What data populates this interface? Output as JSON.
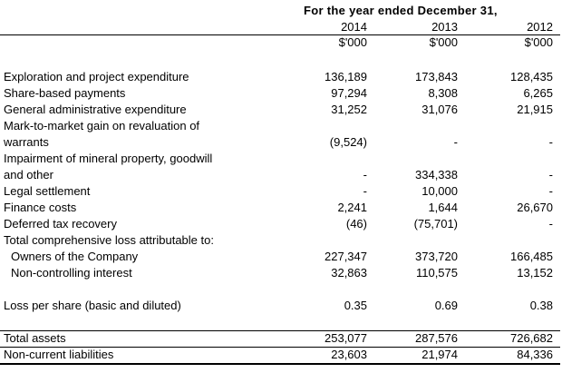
{
  "header": {
    "title": "For the year ended December 31,",
    "years": [
      "2014",
      "2013",
      "2012"
    ],
    "units": [
      "$'000",
      "$'000",
      "$'000"
    ]
  },
  "rows": [
    {
      "label": "Exploration and project expenditure",
      "values": [
        "136,189",
        "173,843",
        "128,435"
      ]
    },
    {
      "label": "Share-based payments",
      "values": [
        "97,294",
        "8,308",
        "6,265"
      ]
    },
    {
      "label": "General administrative expenditure",
      "values": [
        "31,252",
        "31,076",
        "21,915"
      ]
    },
    {
      "label": "Mark-to-market gain on revaluation of",
      "values": [
        "",
        "",
        ""
      ]
    },
    {
      "label": "warrants",
      "values": [
        "(9,524)",
        "-",
        "-"
      ]
    },
    {
      "label": "Impairment of mineral property, goodwill",
      "values": [
        "",
        "",
        ""
      ]
    },
    {
      "label": "and other",
      "values": [
        "-",
        "334,338",
        "-"
      ]
    },
    {
      "label": "Legal settlement",
      "values": [
        "-",
        "10,000",
        "-"
      ]
    },
    {
      "label": "Finance costs",
      "values": [
        "2,241",
        "1,644",
        "26,670"
      ]
    },
    {
      "label": "Deferred tax recovery",
      "values": [
        "(46)",
        "(75,701)",
        "-"
      ]
    },
    {
      "label": "Total comprehensive loss attributable to:",
      "values": [
        "",
        "",
        ""
      ]
    },
    {
      "label": "Owners of the Company",
      "values": [
        "227,347",
        "373,720",
        "166,485"
      ]
    },
    {
      "label": "Non-controlling interest",
      "values": [
        "32,863",
        "110,575",
        "13,152"
      ]
    }
  ],
  "loss_per_share": {
    "label": "Loss per share (basic and diluted)",
    "values": [
      "0.35",
      "0.69",
      "0.38"
    ]
  },
  "balance": [
    {
      "label": "Total assets",
      "values": [
        "253,077",
        "287,576",
        "726,682"
      ]
    },
    {
      "label": "Non-current liabilities",
      "values": [
        "23,603",
        "21,974",
        "84,336"
      ]
    }
  ]
}
